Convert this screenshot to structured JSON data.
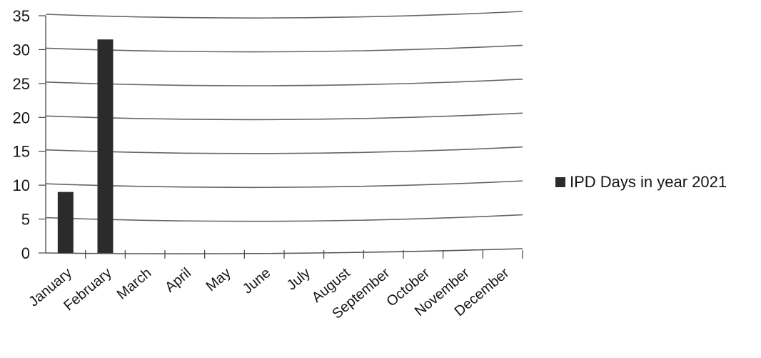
{
  "chart_data": {
    "type": "bar",
    "categories": [
      "January",
      "February",
      "March",
      "April",
      "May",
      "June",
      "July",
      "August",
      "September",
      "October",
      "November",
      "December"
    ],
    "series": [
      {
        "name": "IPD Days in year 2021",
        "values": [
          9,
          31.5,
          0,
          0,
          0,
          0,
          0,
          0,
          0,
          0,
          0,
          0
        ]
      }
    ],
    "title": "",
    "xlabel": "",
    "ylabel": "",
    "ylim": [
      0,
      35
    ],
    "yticks": [
      "0",
      "5",
      "10",
      "15",
      "20",
      "25",
      "30",
      "35"
    ],
    "grid": true,
    "legend_position": "right",
    "colors": {
      "bar": "#2b2b2b",
      "grid": "#666666",
      "text": "#151515"
    }
  }
}
